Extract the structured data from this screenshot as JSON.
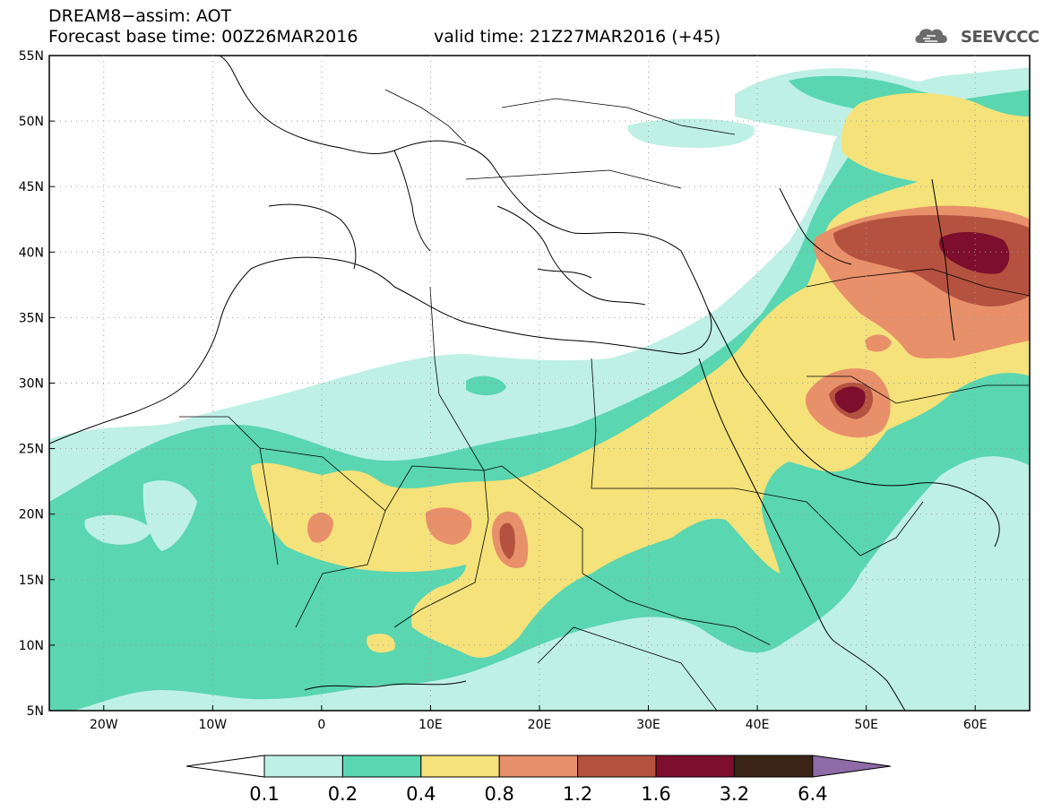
{
  "header": {
    "title": "DREAM8−assim: AOT",
    "base_time": "Forecast base time: 00Z26MAR2016",
    "valid_time": "valid time: 21Z27MAR2016 (+45)"
  },
  "logo": {
    "text": "SEEVCCC",
    "icon": "cloud-logo-icon"
  },
  "map": {
    "lat_labels": [
      "55N",
      "50N",
      "45N",
      "40N",
      "35N",
      "30N",
      "25N",
      "20N",
      "15N",
      "10N",
      "5N"
    ],
    "lon_labels": [
      "20W",
      "10W",
      "0",
      "10E",
      "20E",
      "30E",
      "40E",
      "50E",
      "60E"
    ],
    "extent": {
      "lon_min": -25,
      "lon_max": 65,
      "lat_min": 5,
      "lat_max": 55
    }
  },
  "colorbar": {
    "labels": [
      "0.1",
      "0.2",
      "0.4",
      "0.8",
      "1.2",
      "1.6",
      "3.2",
      "6.4"
    ],
    "colors": [
      "#ffffff",
      "#bff0e6",
      "#5ad6b0",
      "#f5e27a",
      "#e8906a",
      "#b5523f",
      "#7d0e2e",
      "#3c2416",
      "#8e6aa6"
    ]
  },
  "colors": {
    "class_01": "#bff0e6",
    "class_02": "#5ad6b0",
    "class_04": "#f5e27a",
    "class_08": "#e8906a",
    "class_12": "#b5523f",
    "class_16": "#7d0e2e"
  }
}
